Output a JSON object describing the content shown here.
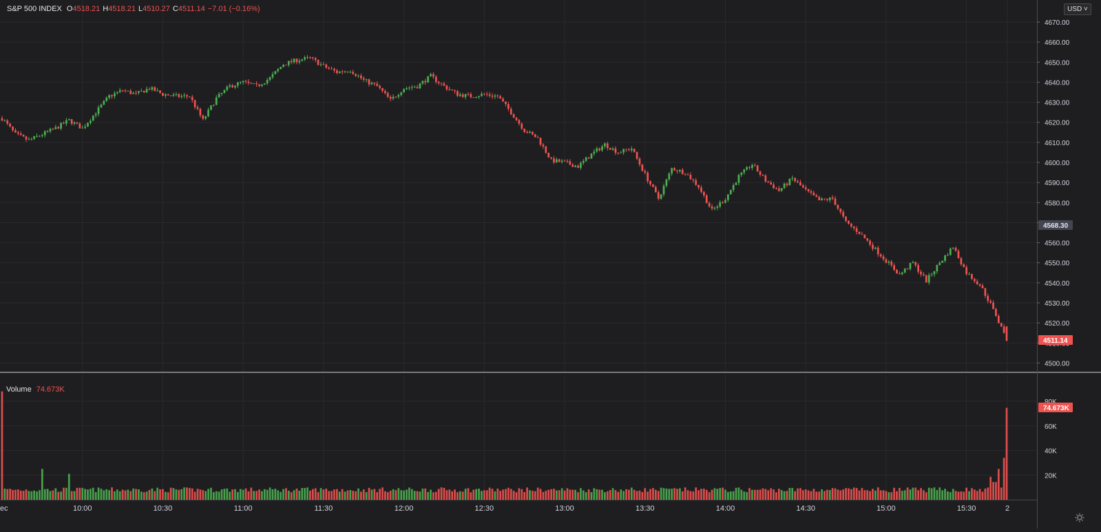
{
  "legend": {
    "symbol": "S&P 500 INDEX",
    "open_label": "O",
    "open": "4518.21",
    "high_label": "H",
    "high": "4518.21",
    "low_label": "L",
    "low": "4510.27",
    "close_label": "C",
    "close": "4511.14",
    "change": "−7.01 (−0.16%)"
  },
  "volume_legend": {
    "label": "Volume",
    "value": "74.673K"
  },
  "currency": "USD",
  "price_badge": "4568.30",
  "last_price_badge": "4511.14",
  "volume_badge": "74.673K",
  "colors": {
    "background": "#1e1e21",
    "up": "#26a69a",
    "up_bright": "#4caf50",
    "down": "#ef5350",
    "grid": "#2a2a2e",
    "text": "#d1d4dc"
  },
  "chart_data": {
    "type": "candlestick",
    "title": "S&P 500 INDEX",
    "price_axis": {
      "ylim": [
        4495,
        4675
      ],
      "ticks": [
        4500,
        4510,
        4520,
        4530,
        4540,
        4550,
        4560,
        4570,
        4580,
        4590,
        4600,
        4610,
        4620,
        4630,
        4640,
        4650,
        4660,
        4670
      ],
      "tick_labels": [
        "4500.00",
        "4510.00",
        "4520.00",
        "4530.00",
        "4540.00",
        "4550.00",
        "4560.00",
        "4570.00",
        "4580.00",
        "4590.00",
        "4600.00",
        "4610.00",
        "4620.00",
        "4630.00",
        "4640.00",
        "4650.00",
        "4660.00",
        "4670.00"
      ]
    },
    "time_axis": {
      "ticks": [
        "10:00",
        "10:30",
        "11:00",
        "11:30",
        "12:00",
        "12:30",
        "13:00",
        "13:30",
        "14:00",
        "14:30",
        "15:00",
        "15:30",
        "2"
      ],
      "first_label_partial": "ec"
    },
    "volume_axis": {
      "ylim": [
        0,
        85000
      ],
      "ticks": [
        20000,
        40000,
        60000,
        80000
      ],
      "tick_labels": [
        "20K",
        "40K",
        "60K",
        "80K"
      ]
    },
    "price_path": [
      [
        "09:30",
        4622
      ],
      [
        "09:35",
        4614
      ],
      [
        "09:40",
        4611
      ],
      [
        "09:45",
        4614
      ],
      [
        "09:50",
        4617
      ],
      [
        "09:55",
        4621
      ],
      [
        "10:00",
        4617
      ],
      [
        "10:05",
        4625
      ],
      [
        "10:10",
        4633
      ],
      [
        "10:15",
        4636
      ],
      [
        "10:20",
        4634
      ],
      [
        "10:25",
        4637
      ],
      [
        "10:30",
        4634
      ],
      [
        "10:35",
        4633
      ],
      [
        "10:40",
        4633
      ],
      [
        "10:45",
        4621
      ],
      [
        "10:50",
        4632
      ],
      [
        "10:55",
        4638
      ],
      [
        "11:00",
        4640
      ],
      [
        "11:05",
        4638
      ],
      [
        "11:10",
        4642
      ],
      [
        "11:15",
        4649
      ],
      [
        "11:20",
        4651
      ],
      [
        "11:25",
        4652
      ],
      [
        "11:30",
        4648
      ],
      [
        "11:35",
        4645
      ],
      [
        "11:40",
        4646
      ],
      [
        "11:45",
        4641
      ],
      [
        "11:50",
        4638
      ],
      [
        "11:55",
        4631
      ],
      [
        "12:00",
        4637
      ],
      [
        "12:05",
        4638
      ],
      [
        "12:10",
        4643
      ],
      [
        "12:15",
        4638
      ],
      [
        "12:20",
        4634
      ],
      [
        "12:25",
        4633
      ],
      [
        "12:30",
        4634
      ],
      [
        "12:35",
        4633
      ],
      [
        "12:40",
        4625
      ],
      [
        "12:45",
        4616
      ],
      [
        "12:50",
        4612
      ],
      [
        "12:55",
        4601
      ],
      [
        "13:00",
        4600
      ],
      [
        "13:05",
        4598
      ],
      [
        "13:10",
        4604
      ],
      [
        "13:15",
        4609
      ],
      [
        "13:20",
        4605
      ],
      [
        "13:25",
        4607
      ],
      [
        "13:30",
        4594
      ],
      [
        "13:35",
        4582
      ],
      [
        "13:40",
        4597
      ],
      [
        "13:45",
        4595
      ],
      [
        "13:50",
        4588
      ],
      [
        "13:55",
        4576
      ],
      [
        "14:00",
        4582
      ],
      [
        "14:05",
        4593
      ],
      [
        "14:10",
        4599
      ],
      [
        "14:15",
        4591
      ],
      [
        "14:20",
        4586
      ],
      [
        "14:25",
        4592
      ],
      [
        "14:30",
        4586
      ],
      [
        "14:35",
        4581
      ],
      [
        "14:40",
        4582
      ],
      [
        "14:45",
        4570
      ],
      [
        "14:50",
        4565
      ],
      [
        "14:55",
        4558
      ],
      [
        "15:00",
        4551
      ],
      [
        "15:05",
        4544
      ],
      [
        "15:10",
        4550
      ],
      [
        "15:15",
        4541
      ],
      [
        "15:20",
        4550
      ],
      [
        "15:25",
        4558
      ],
      [
        "15:30",
        4545
      ],
      [
        "15:35",
        4539
      ],
      [
        "15:40",
        4527
      ],
      [
        "15:45",
        4511
      ]
    ],
    "last_close": 4511.14,
    "last_volume": 74673,
    "volume_spikes": [
      {
        "time": "09:30",
        "value": 88000
      },
      {
        "time": "09:45",
        "value": 25000
      },
      {
        "time": "09:55",
        "value": 21000
      },
      {
        "time": "15:42",
        "value": 25000
      },
      {
        "time": "15:44",
        "value": 34000
      },
      {
        "time": "15:45",
        "value": 74673
      }
    ],
    "typical_volume": 8000
  }
}
